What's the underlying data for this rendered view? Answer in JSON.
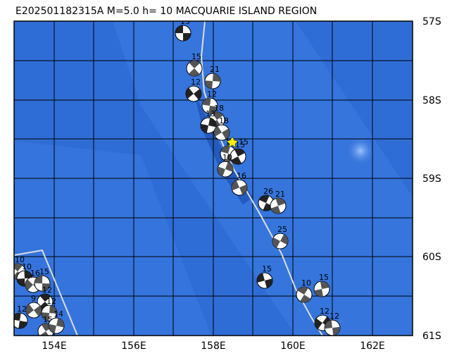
{
  "title": "E202501182315A  M=5.0  h= 10  MACQUARIE ISLAND REGION",
  "lat_labels": [
    "57S",
    "58S",
    "59S",
    "60S",
    "61S"
  ],
  "lon_labels": [
    "154E",
    "156E",
    "158E",
    "160E",
    "162E"
  ],
  "epicenter_label": "15",
  "events": [
    {
      "label": "15"
    },
    {
      "label": "15"
    },
    {
      "label": "21"
    },
    {
      "label": "12"
    },
    {
      "label": "12"
    },
    {
      "label": "18"
    },
    {
      "label": "13"
    },
    {
      "label": "18"
    },
    {
      "label": "10"
    },
    {
      "label": "15"
    },
    {
      "label": "10"
    },
    {
      "label": "16"
    },
    {
      "label": "26"
    },
    {
      "label": "21"
    },
    {
      "label": "25"
    },
    {
      "label": "15"
    },
    {
      "label": "10"
    },
    {
      "label": "15"
    },
    {
      "label": "12"
    },
    {
      "label": "12"
    },
    {
      "label": "10"
    },
    {
      "label": "10"
    },
    {
      "label": "16"
    },
    {
      "label": "15"
    },
    {
      "label": "12"
    },
    {
      "label": "12"
    },
    {
      "label": "9"
    },
    {
      "label": "12"
    },
    {
      "label": "15"
    },
    {
      "label": "14"
    }
  ]
}
